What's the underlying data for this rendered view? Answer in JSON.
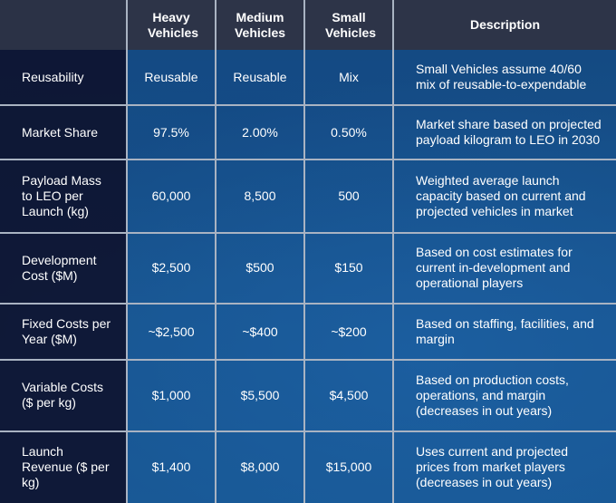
{
  "header": {
    "columns": [
      "",
      "Heavy Vehicles",
      "Medium Vehicles",
      "Small Vehicles",
      "Description"
    ]
  },
  "rows": [
    {
      "label": "Reusability",
      "heavy": "Reusable",
      "medium": "Reusable",
      "small": "Mix",
      "description": "Small Vehicles assume 40/60 mix of reusable-to-expendable"
    },
    {
      "label": "Market Share",
      "heavy": "97.5%",
      "medium": "2.00%",
      "small": "0.50%",
      "description": "Market share based on projected payload kilogram to LEO in 2030"
    },
    {
      "label": "Payload Mass to LEO per Launch (kg)",
      "heavy": "60,000",
      "medium": "8,500",
      "small": "500",
      "description": "Weighted average launch capacity based on current and projected vehicles in market"
    },
    {
      "label": "Development Cost ($M)",
      "heavy": "$2,500",
      "medium": "$500",
      "small": "$150",
      "description": "Based on cost estimates for current in-development and operational players"
    },
    {
      "label": "Fixed Costs per Year ($M)",
      "heavy": "~$2,500",
      "medium": "~$400",
      "small": "~$200",
      "description": "Based on staffing, facilities, and margin"
    },
    {
      "label": "Variable Costs ($ per kg)",
      "heavy": "$1,000",
      "medium": "$5,500",
      "small": "$4,500",
      "description": "Based on production costs, operations, and margin (decreases in out years)"
    },
    {
      "label": "Launch Revenue ($ per kg)",
      "heavy": "$1,400",
      "medium": "$8,000",
      "small": "$15,000",
      "description": "Uses current and projected prices from market players (decreases in out years)"
    }
  ],
  "colors": {
    "header_bg": "#2d3448",
    "label_bg": "#0e1430",
    "cell_bg": "#1a5690",
    "grid": "#a9b3c2"
  }
}
